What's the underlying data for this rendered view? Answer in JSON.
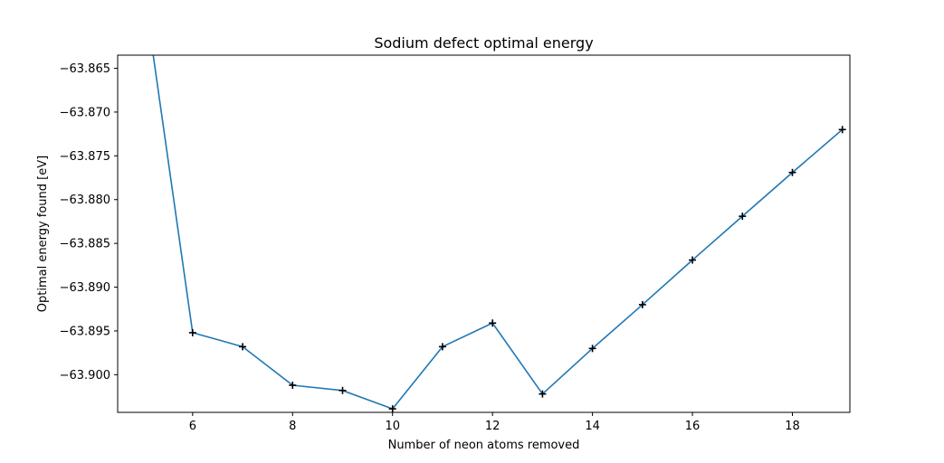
{
  "chart_data": {
    "type": "line",
    "title": "Sodium defect optimal energy",
    "xlabel": "Number of neon atoms removed",
    "ylabel": "Optimal energy found [eV]",
    "xlim": [
      4.5,
      19.15
    ],
    "ylim": [
      -63.9043,
      -63.8635
    ],
    "x_ticks": [
      6,
      8,
      10,
      12,
      14,
      16,
      18
    ],
    "x_tick_labels": [
      "6",
      "8",
      "10",
      "12",
      "14",
      "16",
      "18"
    ],
    "y_ticks": [
      -63.865,
      -63.87,
      -63.875,
      -63.88,
      -63.885,
      -63.89,
      -63.895,
      -63.9
    ],
    "y_tick_labels": [
      "−63.865",
      "−63.870",
      "−63.875",
      "−63.880",
      "−63.885",
      "−63.890",
      "−63.895",
      "−63.900"
    ],
    "series": [
      {
        "color": "#1f77b4",
        "marker": "+",
        "marker_color": "#000000",
        "x": [
          5,
          6,
          7,
          8,
          9,
          10,
          11,
          12,
          13,
          14,
          15,
          16,
          17,
          18,
          19
        ],
        "y": [
          -63.855,
          -63.8952,
          -63.8968,
          -63.9012,
          -63.9018,
          -63.9039,
          -63.8968,
          -63.8941,
          -63.9022,
          -63.897,
          -63.892,
          -63.8869,
          -63.8819,
          -63.8769,
          -63.872
        ],
        "marker_x": [
          6,
          7,
          8,
          9,
          10,
          11,
          12,
          13,
          14,
          15,
          16,
          17,
          18,
          19
        ]
      }
    ],
    "grid": false,
    "legend": false
  }
}
